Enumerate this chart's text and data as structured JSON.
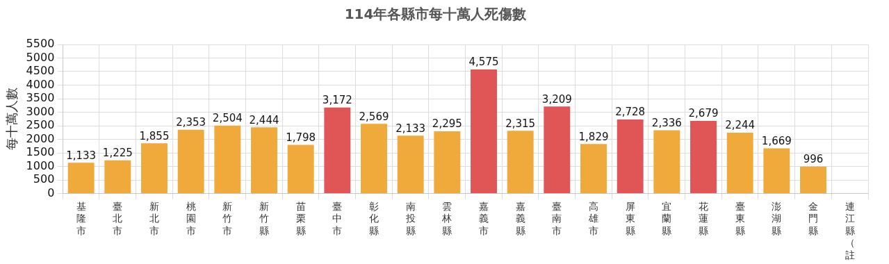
{
  "chart_data": {
    "type": "bar",
    "title": "114年各縣市每十萬人死傷數",
    "ylabel": "每十萬人數",
    "categories": [
      "基隆市",
      "臺北市",
      "新北市",
      "桃園市",
      "新竹市",
      "新竹縣",
      "苗栗縣",
      "臺中市",
      "彰化縣",
      "南投縣",
      "雲林縣",
      "嘉義市",
      "嘉義縣",
      "臺南市",
      "高雄市",
      "屏東縣",
      "宜蘭縣",
      "花蓮縣",
      "臺東縣",
      "澎湖縣",
      "金門縣",
      "連江縣（註"
    ],
    "values": [
      1133,
      1225,
      1855,
      2353,
      2504,
      2444,
      1798,
      3172,
      2569,
      2133,
      2295,
      4575,
      2315,
      3209,
      1829,
      2728,
      2336,
      2679,
      2244,
      1669,
      996,
      null
    ],
    "colors": [
      "#f0aa3c",
      "#f0aa3c",
      "#f0aa3c",
      "#f0aa3c",
      "#f0aa3c",
      "#f0aa3c",
      "#f0aa3c",
      "#e05656",
      "#f0aa3c",
      "#f0aa3c",
      "#f0aa3c",
      "#e05656",
      "#f0aa3c",
      "#e05656",
      "#f0aa3c",
      "#e05656",
      "#f0aa3c",
      "#e05656",
      "#f0aa3c",
      "#f0aa3c",
      "#f0aa3c",
      "#f0aa3c"
    ],
    "ylim": [
      0,
      5500
    ],
    "yticks": [
      0,
      500,
      1000,
      1500,
      2000,
      2500,
      3000,
      3500,
      4000,
      4500,
      5000,
      5500
    ],
    "value_labels": [
      "1,133",
      "1,225",
      "1,855",
      "2,353",
      "2,504",
      "2,444",
      "1,798",
      "3,172",
      "2,569",
      "2,133",
      "2,295",
      "4,575",
      "2,315",
      "3,209",
      "1,829",
      "2,728",
      "2,336",
      "2,679",
      "2,244",
      "1,669",
      "996",
      null
    ],
    "grid": true,
    "legend": false
  }
}
